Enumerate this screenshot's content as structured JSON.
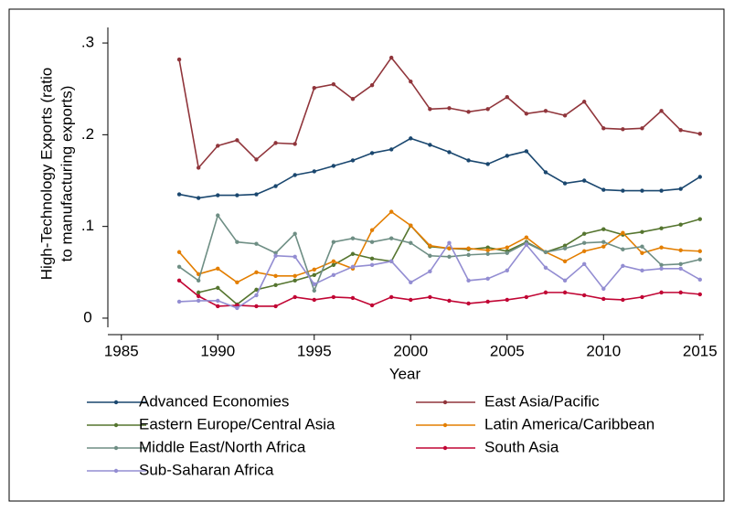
{
  "chart_data": {
    "type": "line",
    "y_label": [
      "High-Technology Exports (ratio",
      "to manufacturing exports)"
    ],
    "x_label": "Year",
    "x": [
      1988,
      1989,
      1990,
      1991,
      1992,
      1993,
      1994,
      1995,
      1996,
      1997,
      1998,
      1999,
      2000,
      2001,
      2002,
      2003,
      2004,
      2005,
      2006,
      2007,
      2008,
      2009,
      2010,
      2011,
      2012,
      2013,
      2014,
      2015
    ],
    "xlim": [
      1984.3,
      2015.2
    ],
    "xticks": [
      1985,
      1990,
      1995,
      2000,
      2005,
      2010,
      2015
    ],
    "ylim": [
      -0.01,
      0.317
    ],
    "yticks": [
      0,
      {
        "value": 0.1,
        "label": ".1"
      },
      {
        "value": 0.2,
        "label": ".2"
      },
      {
        "value": 0.3,
        "label": ".3"
      }
    ],
    "series": [
      {
        "name": "Advanced Economies",
        "color": "#1a476f",
        "values": [
          0.135,
          0.131,
          0.134,
          0.134,
          0.135,
          0.144,
          0.156,
          0.16,
          0.166,
          0.172,
          0.18,
          0.184,
          0.196,
          0.189,
          0.181,
          0.172,
          0.168,
          0.177,
          0.182,
          0.159,
          0.147,
          0.15,
          0.14,
          0.139,
          0.139,
          0.139,
          0.141,
          0.154
        ]
      },
      {
        "name": "East Asia/Pacific",
        "color": "#90353b",
        "values": [
          0.282,
          0.164,
          0.188,
          0.194,
          0.173,
          0.191,
          0.19,
          0.251,
          0.255,
          0.239,
          0.254,
          0.284,
          0.258,
          0.228,
          0.229,
          0.225,
          0.228,
          0.241,
          0.223,
          0.226,
          0.221,
          0.236,
          0.207,
          0.206,
          0.207,
          0.226,
          0.205,
          0.201
        ]
      },
      {
        "name": "Eastern Europe/Central Asia",
        "color": "#55752f",
        "values": [
          null,
          0.028,
          0.033,
          0.015,
          0.031,
          0.036,
          0.041,
          0.047,
          0.058,
          0.07,
          0.065,
          0.062,
          0.101,
          0.078,
          0.076,
          0.075,
          0.077,
          0.073,
          0.083,
          0.072,
          0.079,
          0.092,
          0.097,
          0.091,
          0.094,
          0.098,
          0.102,
          0.108
        ]
      },
      {
        "name": "Latin America/Caribbean",
        "color": "#e37e00",
        "values": [
          0.072,
          0.048,
          0.054,
          0.039,
          0.05,
          0.046,
          0.046,
          0.053,
          0.062,
          0.054,
          0.096,
          0.116,
          0.101,
          0.079,
          0.076,
          0.076,
          0.074,
          0.077,
          0.088,
          0.072,
          0.062,
          0.073,
          0.078,
          0.093,
          0.071,
          0.077,
          0.074,
          0.073
        ]
      },
      {
        "name": "Middle East/North Africa",
        "color": "#6e8e84",
        "values": [
          0.056,
          0.041,
          0.112,
          0.083,
          0.081,
          0.071,
          0.092,
          0.03,
          0.083,
          0.087,
          0.083,
          0.087,
          0.082,
          0.068,
          0.067,
          0.069,
          0.07,
          0.071,
          0.082,
          0.072,
          0.076,
          0.082,
          0.083,
          0.075,
          0.078,
          0.058,
          0.059,
          0.064
        ]
      },
      {
        "name": "South Asia",
        "color": "#c10534",
        "values": [
          0.041,
          0.024,
          0.013,
          0.014,
          0.013,
          0.013,
          0.023,
          0.02,
          0.023,
          0.022,
          0.014,
          0.023,
          0.02,
          0.023,
          0.019,
          0.016,
          0.018,
          0.02,
          0.023,
          0.028,
          0.028,
          0.025,
          0.021,
          0.02,
          0.023,
          0.028,
          0.028,
          0.026
        ]
      },
      {
        "name": "Sub-Saharan Africa",
        "color": "#938dd2",
        "values": [
          0.018,
          0.019,
          0.019,
          0.011,
          0.025,
          0.068,
          0.067,
          0.037,
          0.047,
          0.056,
          0.058,
          0.062,
          0.039,
          0.051,
          0.082,
          0.041,
          0.043,
          0.052,
          0.08,
          0.055,
          0.041,
          0.059,
          0.032,
          0.057,
          0.052,
          0.054,
          0.054,
          0.042
        ]
      }
    ]
  }
}
